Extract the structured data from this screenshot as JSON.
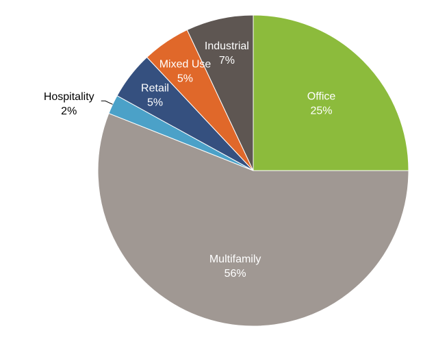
{
  "chart_data": {
    "type": "pie",
    "title": "",
    "start_angle_deg": 0,
    "direction": "clockwise",
    "slices": [
      {
        "label": "Office",
        "value": 25,
        "value_label": "25%",
        "color": "#8CBB3C",
        "label_position": "inside"
      },
      {
        "label": "Multifamily",
        "value": 56,
        "value_label": "56%",
        "color": "#A09893",
        "label_position": "inside"
      },
      {
        "label": "Hospitality",
        "value": 2,
        "value_label": "2%",
        "color": "#4BA1C8",
        "label_position": "outside"
      },
      {
        "label": "Retail",
        "value": 5,
        "value_label": "5%",
        "color": "#35507F",
        "label_position": "inside"
      },
      {
        "label": "Mixed Use",
        "value": 5,
        "value_label": "5%",
        "color": "#E0682A",
        "label_position": "inside"
      },
      {
        "label": "Industrial",
        "value": 7,
        "value_label": "7%",
        "color": "#5E5652",
        "label_position": "inside"
      }
    ],
    "legend": "none"
  }
}
